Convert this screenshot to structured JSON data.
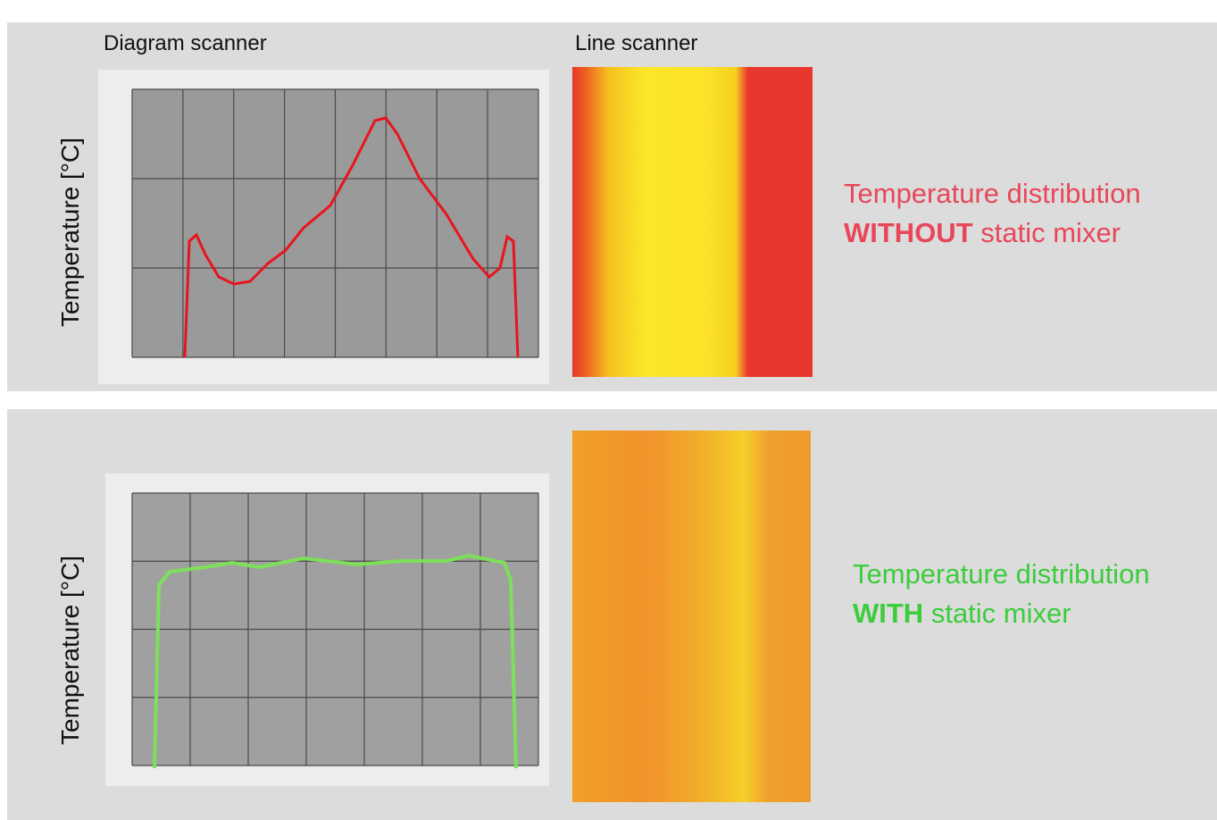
{
  "headers": {
    "diagram": "Diagram scanner",
    "line": "Line scanner"
  },
  "panels": [
    {
      "y_axis_label": "Temperature [°C]",
      "caption": {
        "line1": "Temperature distribution",
        "emphasis": "WITHOUT",
        "rest": "static mixer"
      }
    },
    {
      "y_axis_label": "Temperature [°C]",
      "caption": {
        "line1": "Temperature distribution",
        "emphasis": "WITH",
        "rest": "static mixer"
      }
    }
  ]
}
